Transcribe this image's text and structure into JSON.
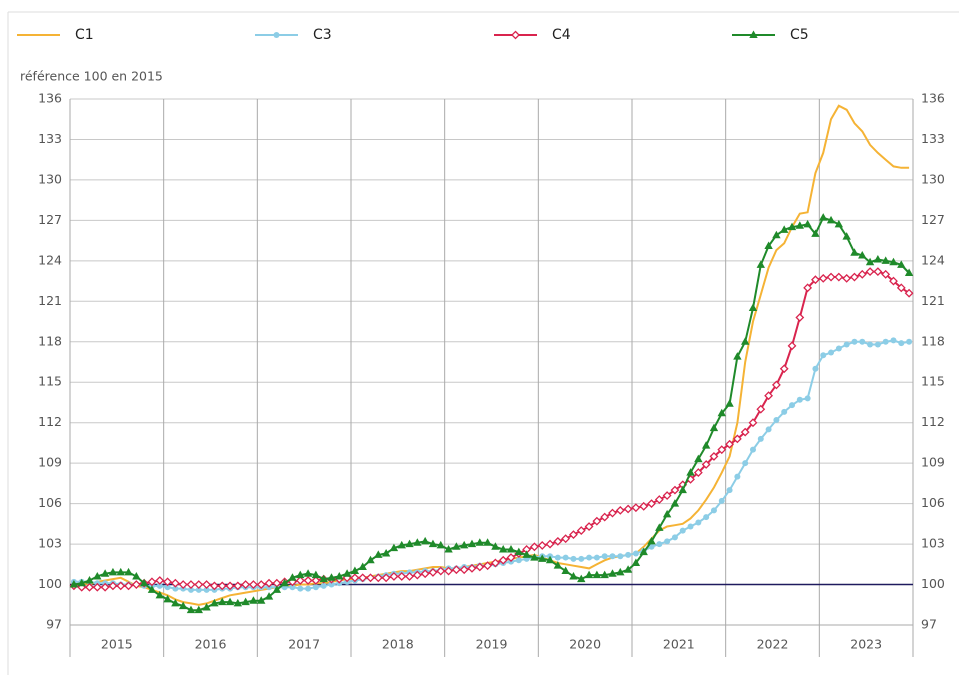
{
  "chart_data": {
    "type": "line",
    "axis_label": "référence 100 en 2015",
    "categories": [
      "2015",
      null,
      null,
      null,
      null,
      null,
      null,
      null,
      null,
      null,
      null,
      null,
      "2016",
      null,
      null,
      null,
      null,
      null,
      null,
      null,
      null,
      null,
      null,
      null,
      "2017",
      null,
      null,
      null,
      null,
      null,
      null,
      null,
      null,
      null,
      null,
      null,
      "2018",
      null,
      null,
      null,
      null,
      null,
      null,
      null,
      null,
      null,
      null,
      null,
      "2019",
      null,
      null,
      null,
      null,
      null,
      null,
      null,
      null,
      null,
      null,
      null,
      "2020",
      null,
      null,
      null,
      null,
      null,
      null,
      null,
      null,
      null,
      null,
      null,
      "2021",
      null,
      null,
      null,
      null,
      null,
      null,
      null,
      null,
      null,
      null,
      null,
      "2022",
      null,
      null,
      null,
      null,
      null,
      null,
      null,
      null,
      null,
      null,
      null,
      "2023",
      null,
      null,
      null,
      null,
      null,
      null,
      null,
      null,
      null,
      null,
      null
    ],
    "ylim": [
      97,
      136
    ],
    "yticks": [
      97,
      100,
      103,
      106,
      109,
      112,
      115,
      118,
      121,
      124,
      127,
      130,
      133,
      136
    ],
    "grid": true,
    "reference_line": 100,
    "reference_color": "#1f1a5e",
    "series": [
      {
        "name": "C1",
        "color": "#f5b335",
        "marker": "none",
        "values": [
          100.0,
          100.1,
          100.0,
          100.2,
          100.3,
          100.4,
          100.5,
          100.2,
          99.9,
          99.8,
          99.6,
          99.4,
          99.2,
          98.9,
          98.7,
          98.6,
          98.5,
          98.6,
          98.8,
          99.0,
          99.2,
          99.3,
          99.4,
          99.5,
          99.6,
          99.7,
          99.8,
          99.9,
          99.9,
          100.0,
          100.0,
          100.1,
          100.1,
          100.2,
          100.3,
          100.4,
          100.4,
          100.5,
          100.6,
          100.7,
          100.8,
          100.9,
          101.0,
          101.0,
          101.1,
          101.2,
          101.3,
          101.3,
          101.2,
          101.2,
          101.3,
          101.4,
          101.5,
          101.6,
          101.7,
          101.8,
          101.9,
          102.0,
          102.1,
          102.2,
          102.0,
          101.8,
          101.6,
          101.5,
          101.4,
          101.3,
          101.2,
          101.5,
          101.8,
          102.0,
          102.1,
          102.2,
          102.3,
          102.8,
          103.4,
          104.0,
          104.3,
          104.4,
          104.5,
          104.9,
          105.5,
          106.3,
          107.2,
          108.3,
          109.5,
          112.0,
          116.5,
          119.5,
          121.5,
          123.5,
          124.8,
          125.3,
          126.5,
          127.5,
          127.6,
          130.5,
          132.0,
          134.5,
          135.5,
          135.2,
          134.2,
          133.6,
          132.6,
          132.0,
          131.5,
          131.0,
          130.9,
          130.9
        ]
      },
      {
        "name": "C3",
        "color": "#8ccde6",
        "marker": "circle",
        "values": [
          100.2,
          100.2,
          100.2,
          100.1,
          100.1,
          100.1,
          100.0,
          100.0,
          100.0,
          99.9,
          99.9,
          99.9,
          99.8,
          99.7,
          99.7,
          99.6,
          99.6,
          99.6,
          99.6,
          99.7,
          99.7,
          99.8,
          99.8,
          99.8,
          99.8,
          99.8,
          99.8,
          99.8,
          99.8,
          99.7,
          99.7,
          99.8,
          99.9,
          100.0,
          100.1,
          100.2,
          100.3,
          100.4,
          100.5,
          100.6,
          100.7,
          100.8,
          100.8,
          100.9,
          100.9,
          101.0,
          101.0,
          101.1,
          101.2,
          101.2,
          101.3,
          101.3,
          101.4,
          101.4,
          101.5,
          101.6,
          101.7,
          101.8,
          101.9,
          102.0,
          102.1,
          102.1,
          102.0,
          102.0,
          101.9,
          101.9,
          102.0,
          102.0,
          102.1,
          102.1,
          102.1,
          102.2,
          102.3,
          102.5,
          102.8,
          103.0,
          103.2,
          103.5,
          104.0,
          104.3,
          104.6,
          105.0,
          105.5,
          106.2,
          107.0,
          108.0,
          109.0,
          110.0,
          110.8,
          111.5,
          112.2,
          112.8,
          113.3,
          113.7,
          113.8,
          116.0,
          117.0,
          117.2,
          117.5,
          117.8,
          118.0,
          118.0,
          117.8,
          117.8,
          118.0,
          118.1,
          117.9,
          118.0
        ]
      },
      {
        "name": "C4",
        "color": "#d9244e",
        "marker": "diamond",
        "values": [
          99.9,
          99.8,
          99.8,
          99.8,
          99.8,
          99.9,
          99.9,
          99.9,
          100.0,
          100.1,
          100.2,
          100.3,
          100.2,
          100.1,
          100.0,
          100.0,
          100.0,
          100.0,
          99.9,
          99.9,
          99.9,
          99.9,
          100.0,
          100.0,
          100.0,
          100.1,
          100.1,
          100.2,
          100.2,
          100.3,
          100.3,
          100.3,
          100.4,
          100.4,
          100.4,
          100.5,
          100.5,
          100.5,
          100.5,
          100.5,
          100.5,
          100.6,
          100.6,
          100.6,
          100.7,
          100.8,
          100.9,
          101.0,
          101.0,
          101.1,
          101.1,
          101.2,
          101.3,
          101.4,
          101.6,
          101.8,
          102.0,
          102.3,
          102.6,
          102.8,
          102.9,
          103.0,
          103.2,
          103.4,
          103.7,
          104.0,
          104.3,
          104.7,
          105.0,
          105.3,
          105.5,
          105.6,
          105.7,
          105.8,
          106.0,
          106.3,
          106.6,
          107.0,
          107.4,
          107.8,
          108.3,
          108.9,
          109.5,
          110.0,
          110.4,
          110.8,
          111.3,
          112.0,
          113.0,
          114.0,
          114.8,
          116.0,
          117.7,
          119.8,
          122.0,
          122.6,
          122.7,
          122.8,
          122.8,
          122.7,
          122.8,
          123.0,
          123.2,
          123.2,
          123.0,
          122.5,
          122.0,
          121.6
        ]
      },
      {
        "name": "C5",
        "color": "#1f8a2a",
        "marker": "triangle",
        "values": [
          100.0,
          100.1,
          100.3,
          100.6,
          100.8,
          100.9,
          100.9,
          100.9,
          100.6,
          100.1,
          99.6,
          99.2,
          98.9,
          98.6,
          98.4,
          98.1,
          98.1,
          98.3,
          98.6,
          98.7,
          98.7,
          98.6,
          98.7,
          98.8,
          98.8,
          99.1,
          99.6,
          100.1,
          100.5,
          100.7,
          100.8,
          100.7,
          100.4,
          100.5,
          100.6,
          100.8,
          101.0,
          101.3,
          101.8,
          102.2,
          102.3,
          102.7,
          102.9,
          103.0,
          103.1,
          103.2,
          103.0,
          102.9,
          102.6,
          102.8,
          102.9,
          103.0,
          103.1,
          103.1,
          102.8,
          102.6,
          102.6,
          102.4,
          102.2,
          102.0,
          101.9,
          101.8,
          101.4,
          101.0,
          100.6,
          100.4,
          100.7,
          100.7,
          100.7,
          100.8,
          100.9,
          101.1,
          101.6,
          102.4,
          103.2,
          104.2,
          105.2,
          106.0,
          107.0,
          108.3,
          109.3,
          110.3,
          111.6,
          112.7,
          113.4,
          116.9,
          118.0,
          120.5,
          123.7,
          125.1,
          125.9,
          126.3,
          126.5,
          126.6,
          126.7,
          126.0,
          127.2,
          127.0,
          126.7,
          125.8,
          124.6,
          124.4,
          123.9,
          124.1,
          124.0,
          123.9,
          123.7,
          123.1
        ]
      }
    ]
  }
}
